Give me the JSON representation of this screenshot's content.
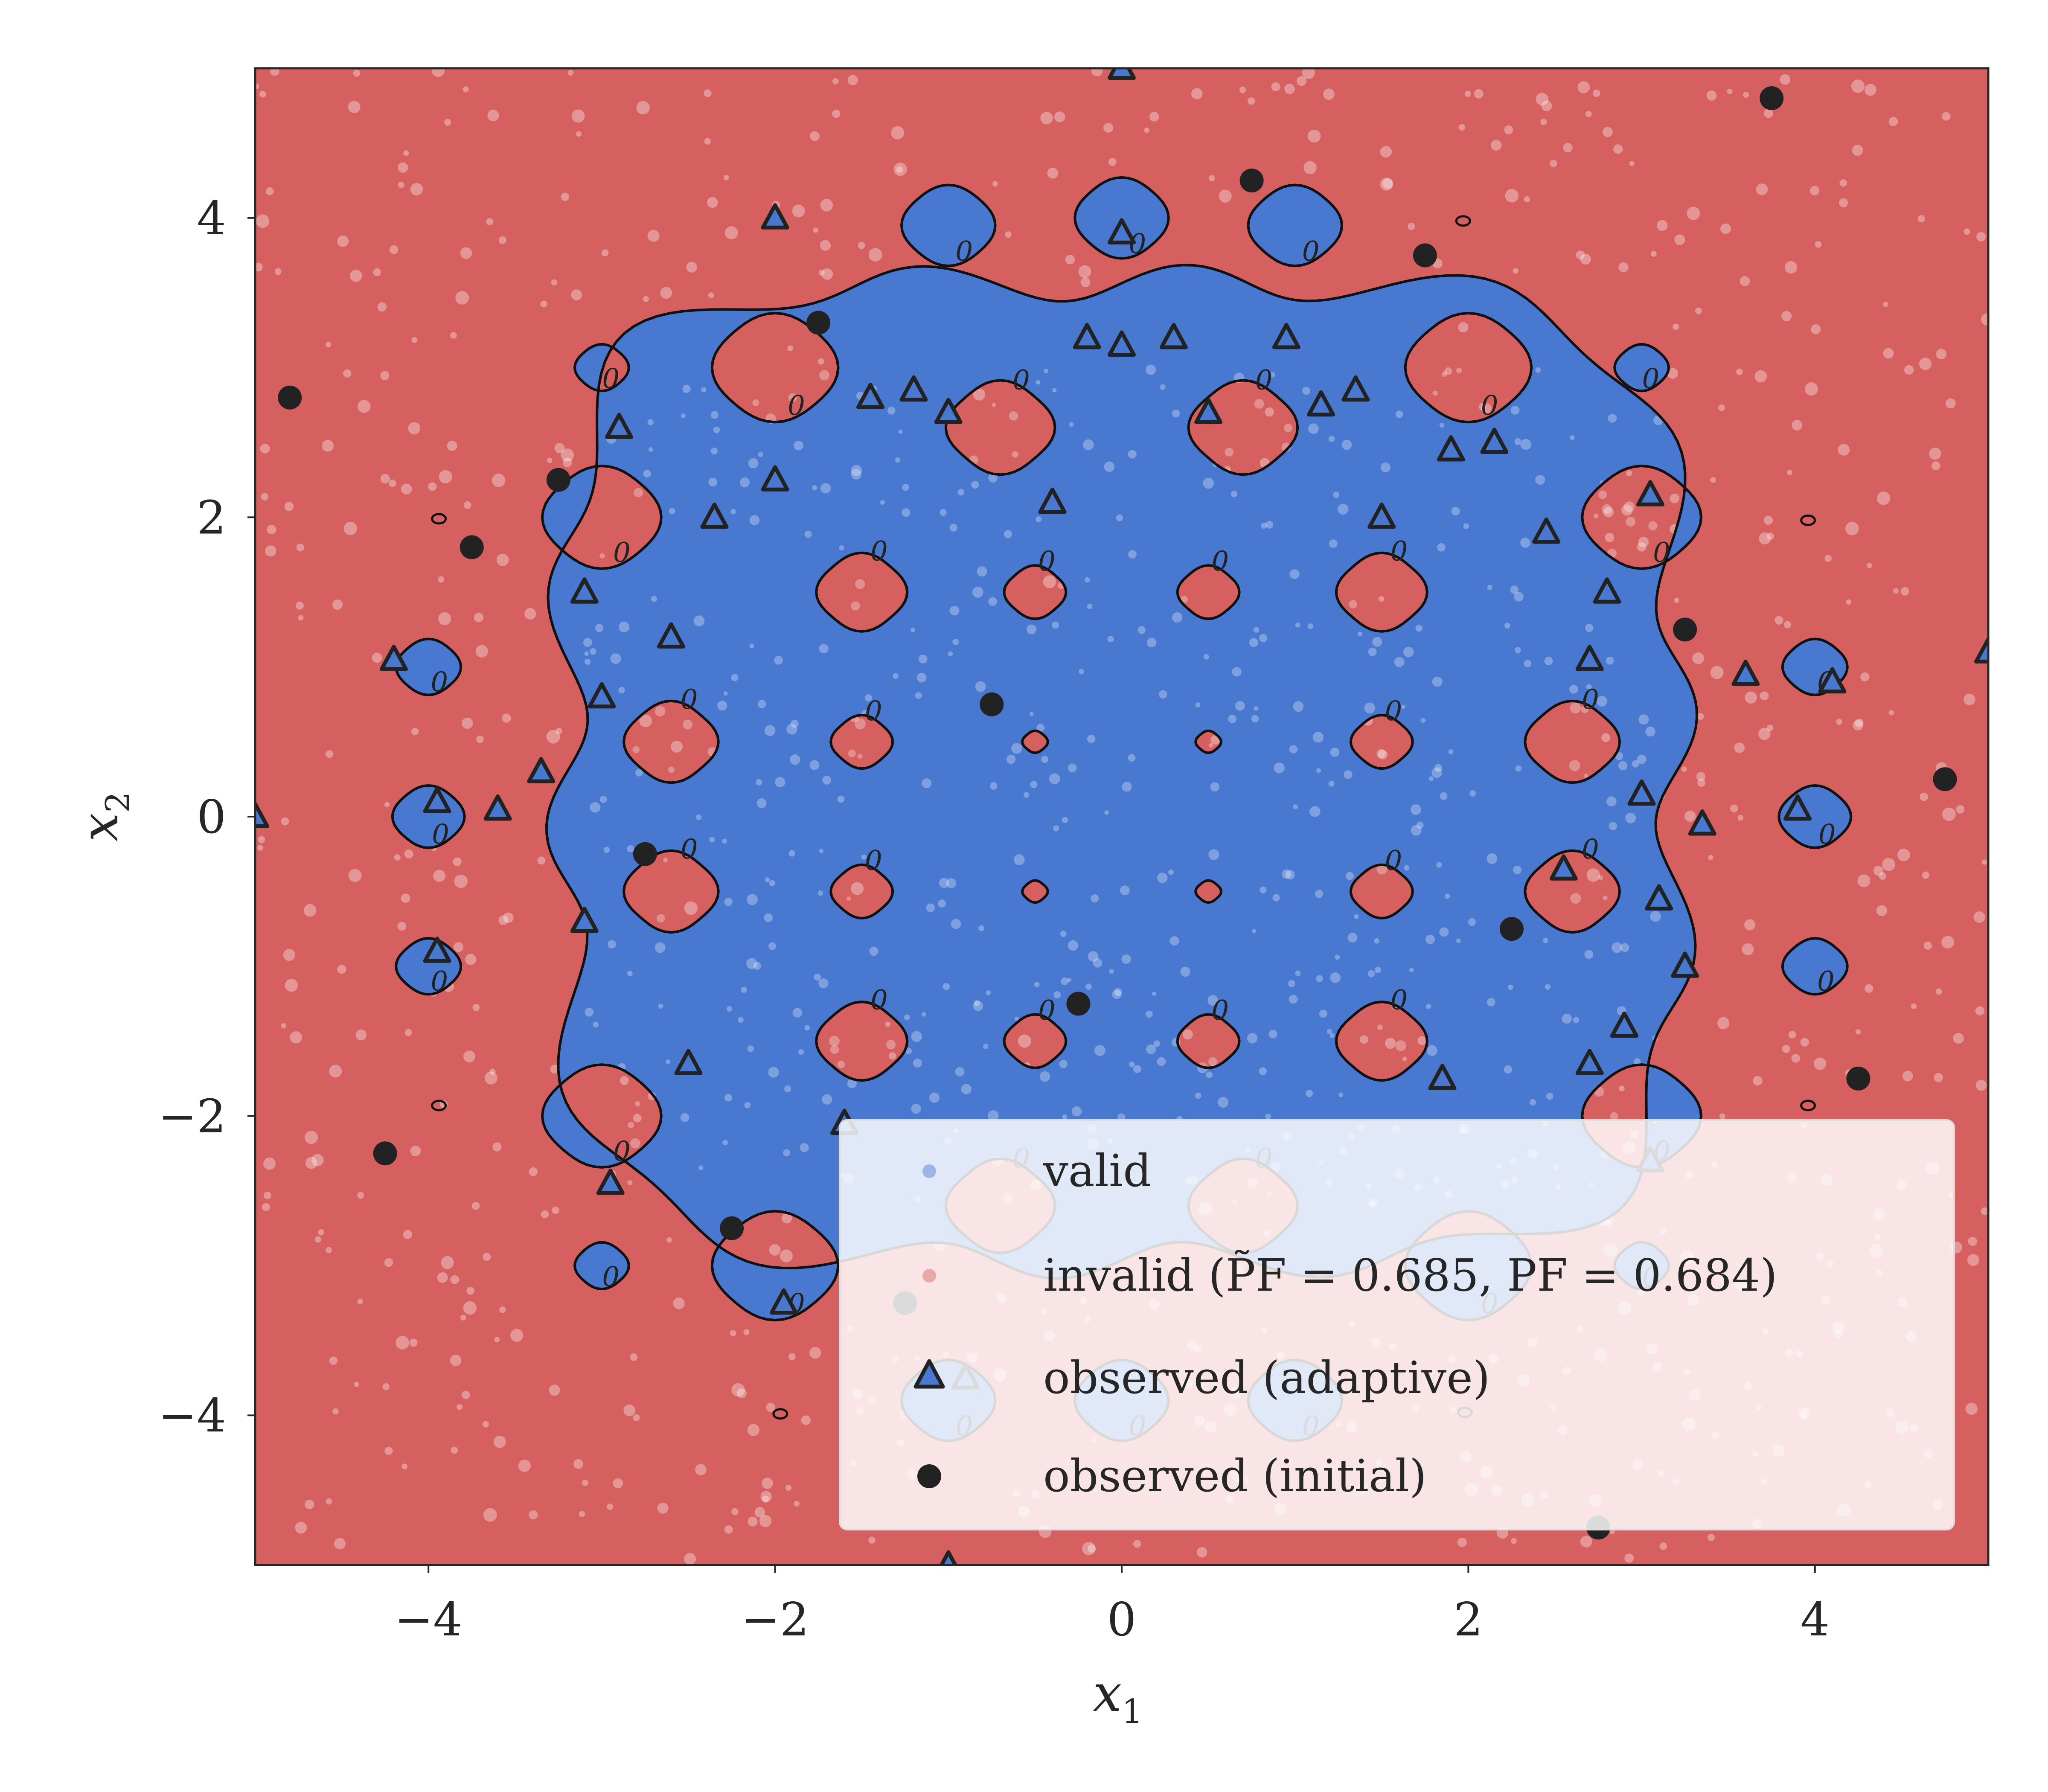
{
  "chart_data": {
    "type": "scatter",
    "title": "",
    "xlabel": "x",
    "xlabel_sub": "1",
    "ylabel": "x",
    "ylabel_sub": "2",
    "xlim": [
      -5,
      5
    ],
    "ylim": [
      -5,
      5
    ],
    "xticks": [
      -4,
      -2,
      0,
      2,
      4
    ],
    "yticks": [
      -4,
      -2,
      0,
      2,
      4
    ],
    "xtick_labels": [
      "−4",
      "−2",
      "0",
      "2",
      "4"
    ],
    "ytick_labels": [
      "−4",
      "−2",
      "0",
      "2",
      "4"
    ],
    "grid": false,
    "legend_position": "lower-right",
    "colors": {
      "valid": "#4878d0",
      "invalid": "#d65f5f",
      "observed": "#222222",
      "contour": "#111111"
    },
    "contour_level_label": "0",
    "legend": [
      {
        "key": "valid",
        "label": "valid"
      },
      {
        "key": "invalid",
        "label": "invalid (P̃F = 0.685,  PF = 0.684)"
      },
      {
        "key": "adaptive",
        "label": "observed (adaptive)"
      },
      {
        "key": "initial",
        "label": "observed (initial)"
      }
    ],
    "valid_regions": [
      {
        "shape": "plus",
        "cx": 0,
        "cy": 0.3,
        "r": 3.2,
        "arm": 2.0
      },
      {
        "cx": 0,
        "cy": 4.0,
        "r": 0.26
      },
      {
        "cx": -1.0,
        "cy": 3.95,
        "r": 0.26
      },
      {
        "cx": 1.0,
        "cy": 3.95,
        "r": 0.26
      },
      {
        "cx": -2.0,
        "cy": 3.0,
        "r": 0.35
      },
      {
        "cx": 2.0,
        "cy": 3.0,
        "r": 0.35
      },
      {
        "cx": -3.0,
        "cy": 3.0,
        "r": 0.15
      },
      {
        "cx": 3.0,
        "cy": 3.0,
        "r": 0.15
      },
      {
        "cx": -3.0,
        "cy": 2.0,
        "r": 0.33
      },
      {
        "cx": 3.0,
        "cy": 2.0,
        "r": 0.33
      },
      {
        "cx": -4.0,
        "cy": 1.0,
        "r": 0.18
      },
      {
        "cx": 4.0,
        "cy": 1.0,
        "r": 0.18
      },
      {
        "cx": -4.0,
        "cy": 0.0,
        "r": 0.2
      },
      {
        "cx": 4.0,
        "cy": 0.0,
        "r": 0.2
      },
      {
        "cx": -4.0,
        "cy": -1.0,
        "r": 0.18
      },
      {
        "cx": 4.0,
        "cy": -1.0,
        "r": 0.18
      },
      {
        "cx": -3.0,
        "cy": -2.0,
        "r": 0.33
      },
      {
        "cx": 3.0,
        "cy": -2.0,
        "r": 0.33
      },
      {
        "cx": -3.0,
        "cy": -3.0,
        "r": 0.15
      },
      {
        "cx": 3.0,
        "cy": -3.0,
        "r": 0.15
      },
      {
        "cx": -2.0,
        "cy": -3.0,
        "r": 0.35
      },
      {
        "cx": 2.0,
        "cy": -3.0,
        "r": 0.35
      },
      {
        "cx": -1.0,
        "cy": -3.9,
        "r": 0.26
      },
      {
        "cx": 0,
        "cy": -3.9,
        "r": 0.26
      },
      {
        "cx": 1.0,
        "cy": -3.9,
        "r": 0.26
      }
    ],
    "invalid_holes": [
      {
        "cx": -1.5,
        "cy": 1.5,
        "r": 0.25
      },
      {
        "cx": -0.5,
        "cy": 1.5,
        "r": 0.17
      },
      {
        "cx": 0.5,
        "cy": 1.5,
        "r": 0.17
      },
      {
        "cx": 1.5,
        "cy": 1.5,
        "r": 0.25
      },
      {
        "cx": -2.6,
        "cy": 0.5,
        "r": 0.26
      },
      {
        "cx": -1.5,
        "cy": 0.5,
        "r": 0.17
      },
      {
        "cx": -0.5,
        "cy": 0.5,
        "r": 0.07
      },
      {
        "cx": 0.5,
        "cy": 0.5,
        "r": 0.07
      },
      {
        "cx": 1.5,
        "cy": 0.5,
        "r": 0.17
      },
      {
        "cx": 2.6,
        "cy": 0.5,
        "r": 0.26
      },
      {
        "cx": -2.6,
        "cy": -0.5,
        "r": 0.26
      },
      {
        "cx": -1.5,
        "cy": -0.5,
        "r": 0.17
      },
      {
        "cx": -0.5,
        "cy": -0.5,
        "r": 0.07
      },
      {
        "cx": 0.5,
        "cy": -0.5,
        "r": 0.07
      },
      {
        "cx": 1.5,
        "cy": -0.5,
        "r": 0.17
      },
      {
        "cx": 2.6,
        "cy": -0.5,
        "r": 0.26
      },
      {
        "cx": -1.5,
        "cy": -1.5,
        "r": 0.25
      },
      {
        "cx": -0.5,
        "cy": -1.5,
        "r": 0.17
      },
      {
        "cx": 0.5,
        "cy": -1.5,
        "r": 0.17
      },
      {
        "cx": 1.5,
        "cy": -1.5,
        "r": 0.25
      },
      {
        "cx": -0.7,
        "cy": 2.6,
        "r": 0.3
      },
      {
        "cx": 0.7,
        "cy": 2.6,
        "r": 0.3
      },
      {
        "cx": -0.7,
        "cy": -2.6,
        "r": 0.3
      },
      {
        "cx": 0.7,
        "cy": -2.6,
        "r": 0.3
      }
    ],
    "tiny_contours": [
      {
        "x": 1.97,
        "y": 3.98
      },
      {
        "x": -3.94,
        "y": 1.99
      },
      {
        "x": 3.96,
        "y": 1.98
      },
      {
        "x": -3.94,
        "y": -1.93
      },
      {
        "x": 3.96,
        "y": -1.93
      },
      {
        "x": -1.97,
        "y": -3.99
      },
      {
        "x": 1.98,
        "y": -3.98
      }
    ],
    "observed_adaptive": [
      [
        0.0,
        5.0
      ],
      [
        -2.0,
        4.0
      ],
      [
        0.0,
        3.9
      ],
      [
        -2.9,
        2.6
      ],
      [
        -0.2,
        3.2
      ],
      [
        0.0,
        3.15
      ],
      [
        0.3,
        3.2
      ],
      [
        0.95,
        3.2
      ],
      [
        -1.2,
        2.85
      ],
      [
        -1.45,
        2.8
      ],
      [
        -1.0,
        2.7
      ],
      [
        0.5,
        2.7
      ],
      [
        1.15,
        2.75
      ],
      [
        1.35,
        2.85
      ],
      [
        -2.0,
        2.25
      ],
      [
        -0.4,
        2.1
      ],
      [
        -2.35,
        2.0
      ],
      [
        1.5,
        2.0
      ],
      [
        1.9,
        2.45
      ],
      [
        2.15,
        2.5
      ],
      [
        3.05,
        2.15
      ],
      [
        2.45,
        1.9
      ],
      [
        -3.1,
        1.5
      ],
      [
        2.8,
        1.5
      ],
      [
        -2.6,
        1.2
      ],
      [
        -4.2,
        1.05
      ],
      [
        -3.0,
        0.8
      ],
      [
        2.7,
        1.05
      ],
      [
        3.6,
        0.95
      ],
      [
        4.1,
        0.9
      ],
      [
        5.0,
        1.1
      ],
      [
        -3.35,
        0.3
      ],
      [
        -3.6,
        0.05
      ],
      [
        -3.95,
        0.1
      ],
      [
        -5.0,
        0.0
      ],
      [
        3.0,
        0.15
      ],
      [
        3.35,
        -0.05
      ],
      [
        3.9,
        0.05
      ],
      [
        -3.1,
        -0.7
      ],
      [
        2.55,
        -0.35
      ],
      [
        3.1,
        -0.55
      ],
      [
        3.25,
        -1.0
      ],
      [
        -3.95,
        -0.9
      ],
      [
        2.9,
        -1.4
      ],
      [
        2.7,
        -1.65
      ],
      [
        -2.5,
        -1.65
      ],
      [
        1.85,
        -1.75
      ],
      [
        -1.6,
        -2.05
      ],
      [
        3.05,
        -2.3
      ],
      [
        -2.95,
        -2.45
      ],
      [
        -1.95,
        -3.25
      ],
      [
        -0.9,
        -3.75
      ],
      [
        -1.0,
        -5.0
      ]
    ],
    "observed_initial": [
      [
        -4.8,
        2.8
      ],
      [
        -3.25,
        2.25
      ],
      [
        -3.75,
        1.8
      ],
      [
        -1.75,
        3.3
      ],
      [
        0.75,
        4.25
      ],
      [
        1.75,
        3.75
      ],
      [
        3.75,
        4.8
      ],
      [
        3.25,
        1.25
      ],
      [
        -0.75,
        0.75
      ],
      [
        -2.75,
        -0.25
      ],
      [
        -0.25,
        -1.25
      ],
      [
        2.25,
        -0.75
      ],
      [
        -4.25,
        -2.25
      ],
      [
        -2.25,
        -2.75
      ],
      [
        -1.25,
        -3.25
      ],
      [
        4.25,
        -1.75
      ],
      [
        4.75,
        0.25
      ],
      [
        2.75,
        -4.75
      ]
    ]
  }
}
